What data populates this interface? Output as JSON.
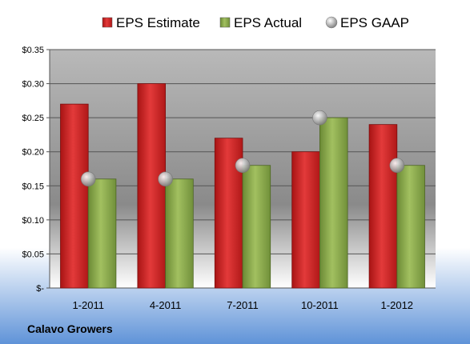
{
  "company": "Calavo Growers",
  "chart_data": {
    "type": "bar",
    "categories": [
      "1-2011",
      "4-2011",
      "7-2011",
      "10-2011",
      "1-2012"
    ],
    "series": [
      {
        "name": "EPS Estimate",
        "kind": "bar",
        "color": "#cc2222",
        "values": [
          0.27,
          0.3,
          0.22,
          0.2,
          0.24
        ]
      },
      {
        "name": "EPS Actual",
        "kind": "bar",
        "color": "#8aa84a",
        "values": [
          0.16,
          0.16,
          0.18,
          0.25,
          0.18
        ]
      },
      {
        "name": "EPS GAAP",
        "kind": "marker",
        "color": "#aaaaaa",
        "values": [
          0.16,
          0.16,
          0.18,
          0.25,
          0.18
        ]
      }
    ],
    "yticks": [
      "$-",
      "$0.05",
      "$0.10",
      "$0.15",
      "$0.20",
      "$0.25",
      "$0.30",
      "$0.35"
    ],
    "ylim": [
      0,
      0.35
    ],
    "grid": true,
    "legend_position": "top"
  }
}
